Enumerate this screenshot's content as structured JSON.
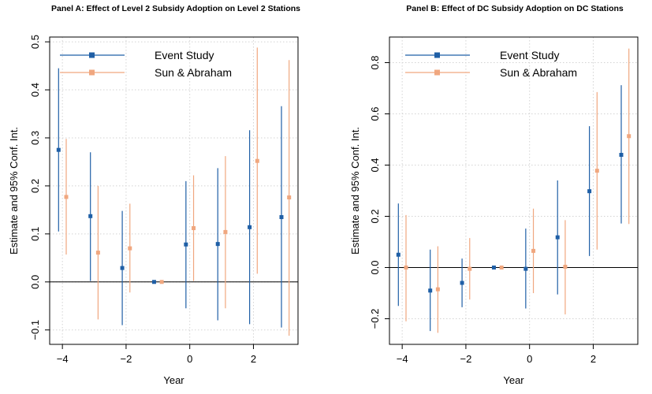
{
  "chart_data": [
    {
      "type": "scatter",
      "title": "Panel A: Effect of Level 2 Subsidy Adoption on Level 2 Stations",
      "xlabel": "Year",
      "ylabel": "Estimate and 95% Conf. Int.",
      "xlim": [
        -4.4,
        3.4
      ],
      "ylim": [
        -0.13,
        0.51
      ],
      "xticks": [
        -4,
        -2,
        0,
        2
      ],
      "xtick_labels": [
        "−4",
        "−2",
        "0",
        "2"
      ],
      "yticks": [
        -0.1,
        0.0,
        0.1,
        0.2,
        0.3,
        0.4,
        0.5
      ],
      "ytick_labels": [
        "−0.1",
        "0.0",
        "0.1",
        "0.2",
        "0.3",
        "0.4",
        "0.5"
      ],
      "grid": true,
      "reference_line": 0,
      "legend_position": "top-left",
      "series": [
        {
          "name": "Event Study",
          "color": "#1f5fa6",
          "x": [
            -4,
            -3,
            -2,
            -1,
            0,
            1,
            2,
            3
          ],
          "y": [
            0.275,
            0.137,
            0.029,
            0.0,
            0.078,
            0.079,
            0.114,
            0.135
          ],
          "lo": [
            0.105,
            0.002,
            -0.09,
            0.0,
            -0.055,
            -0.08,
            -0.088,
            -0.095
          ],
          "hi": [
            0.445,
            0.27,
            0.148,
            0.0,
            0.21,
            0.237,
            0.316,
            0.366
          ]
        },
        {
          "name": "Sun & Abraham",
          "color": "#f0a77f",
          "x": [
            -4,
            -3,
            -2,
            -1,
            0,
            1,
            2,
            3
          ],
          "y": [
            0.177,
            0.061,
            0.07,
            0.0,
            0.112,
            0.104,
            0.252,
            0.176
          ],
          "lo": [
            0.057,
            -0.078,
            -0.022,
            0.0,
            0.002,
            -0.055,
            0.017,
            -0.112
          ],
          "hi": [
            0.298,
            0.2,
            0.163,
            0.0,
            0.222,
            0.262,
            0.488,
            0.462
          ]
        }
      ]
    },
    {
      "type": "scatter",
      "title": "Panel B: Effect of DC Subsidy Adoption on DC Stations",
      "xlabel": "Year",
      "ylabel": "Estimate and 95% Conf. Int.",
      "xlim": [
        -4.4,
        3.4
      ],
      "ylim": [
        -0.3,
        0.9
      ],
      "xticks": [
        -4,
        -2,
        0,
        2
      ],
      "xtick_labels": [
        "−4",
        "−2",
        "0",
        "2"
      ],
      "yticks": [
        -0.2,
        0.0,
        0.2,
        0.4,
        0.6,
        0.8
      ],
      "ytick_labels": [
        "−0.2",
        "0.0",
        "0.2",
        "0.4",
        "0.6",
        "0.8"
      ],
      "grid": true,
      "reference_line": 0,
      "legend_position": "top-left",
      "series": [
        {
          "name": "Event Study",
          "color": "#1f5fa6",
          "x": [
            -4,
            -3,
            -2,
            -1,
            0,
            1,
            2,
            3
          ],
          "y": [
            0.05,
            -0.09,
            -0.06,
            0.0,
            -0.005,
            0.118,
            0.298,
            0.44
          ],
          "lo": [
            -0.15,
            -0.248,
            -0.155,
            0.0,
            -0.16,
            -0.105,
            0.045,
            0.172
          ],
          "hi": [
            0.25,
            0.07,
            0.035,
            0.0,
            0.152,
            0.34,
            0.552,
            0.712
          ]
        },
        {
          "name": "Sun & Abraham",
          "color": "#f0a77f",
          "x": [
            -4,
            -3,
            -2,
            -1,
            0,
            1,
            2,
            3
          ],
          "y": [
            0.0,
            -0.085,
            -0.005,
            0.0,
            0.065,
            0.003,
            0.378,
            0.513
          ],
          "lo": [
            -0.21,
            -0.255,
            -0.125,
            0.0,
            -0.1,
            -0.183,
            0.07,
            0.17
          ],
          "hi": [
            0.205,
            0.083,
            0.115,
            0.0,
            0.23,
            0.185,
            0.685,
            0.855
          ]
        }
      ]
    }
  ]
}
